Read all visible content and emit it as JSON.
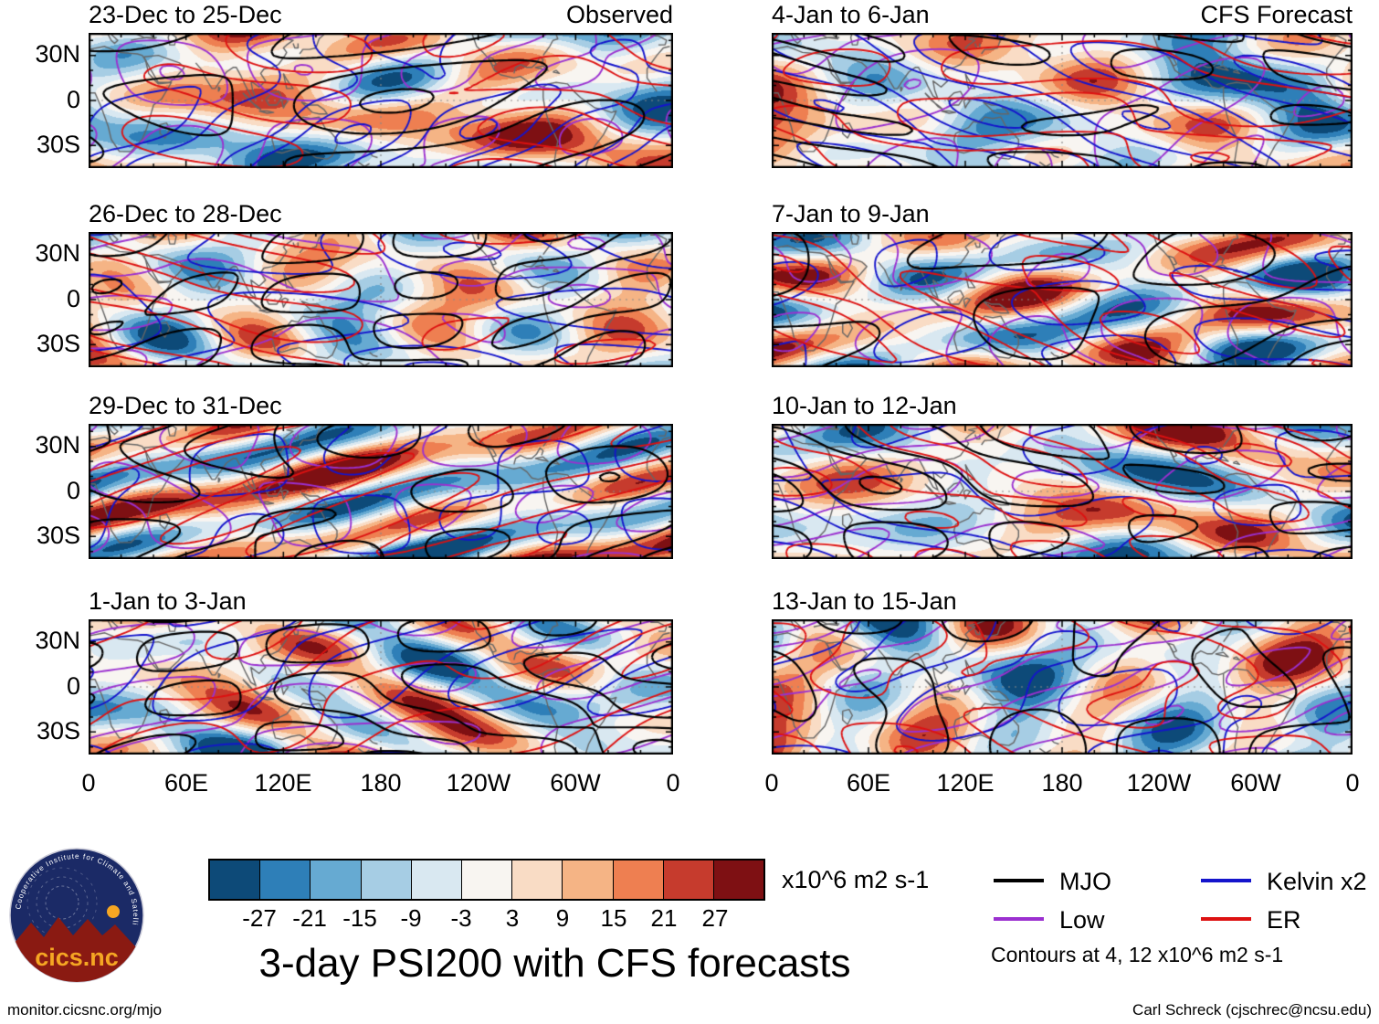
{
  "page": {
    "main_title": "3-day PSI200 with CFS forecasts",
    "footer_left": "monitor.cicsnc.org/mjo",
    "footer_right": "Carl Schreck (cjschrec@ncsu.edu)"
  },
  "logo": {
    "text": "cics.nc",
    "ring_text": "Cooperative Institute for Climate and Satellites"
  },
  "chart_data": {
    "type": "heatmap",
    "field": "3-day mean 200-hPa streamfunction (PSI200) anomalies, shaded, with wave-filtered contours (MJO, Kelvin x2, Low, ER)",
    "columns": [
      {
        "label": "Observed",
        "panels": [
          "23-Dec to 25-Dec",
          "26-Dec to 28-Dec",
          "29-Dec to 31-Dec",
          "1-Jan to 3-Jan"
        ]
      },
      {
        "label": "CFS Forecast",
        "panels": [
          "4-Jan to 6-Jan",
          "7-Jan to 9-Jan",
          "10-Jan to 12-Jan",
          "13-Jan to 15-Jan"
        ]
      }
    ],
    "x_ticks": [
      "0",
      "60E",
      "120E",
      "180",
      "120W",
      "60W",
      "0"
    ],
    "y_ticks": [
      "30N",
      "0",
      "30S"
    ],
    "lon_range": [
      0,
      360
    ],
    "lat_range": [
      -45,
      45
    ],
    "grid_reference_lines": [
      "equator",
      "dateline"
    ],
    "colorbar": {
      "levels": [
        -27,
        -21,
        -15,
        -9,
        -3,
        3,
        9,
        15,
        21,
        27
      ],
      "tick_labels": [
        "-27",
        "-21",
        "-15",
        "-9",
        "-3",
        "3",
        "9",
        "15",
        "21",
        "27"
      ],
      "unit": "x10^6 m2 s-1",
      "colors": [
        "#0d4a78",
        "#2e7fb8",
        "#66aad2",
        "#a6cde4",
        "#d9e8f1",
        "#f8f5f1",
        "#f9dcc5",
        "#f5b485",
        "#ee7f51",
        "#c63b2d",
        "#7e1013"
      ]
    },
    "legend": [
      {
        "label": "MJO",
        "color": "#000000"
      },
      {
        "label": "Kelvin x2",
        "color": "#1414cc"
      },
      {
        "label": "Low",
        "color": "#9b30d0"
      },
      {
        "label": "ER",
        "color": "#dd1111"
      }
    ],
    "note": "Contours at 4, 12 x10^6 m2 s-1",
    "coast_color": "#666666"
  }
}
